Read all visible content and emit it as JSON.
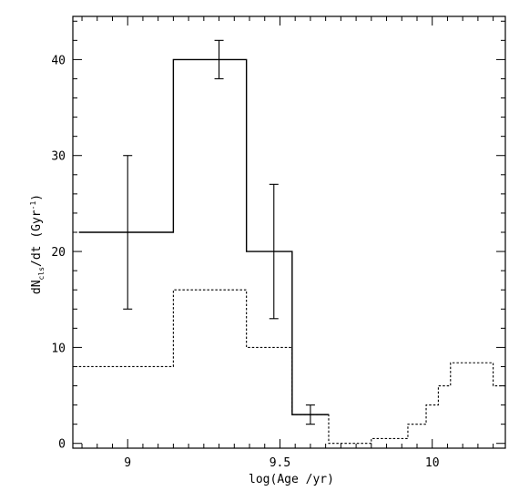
{
  "chart_data": {
    "type": "line",
    "title": "",
    "xlabel": "log(Age /yr)",
    "ylabel_main": "dN",
    "ylabel_sub": "cls",
    "ylabel_rest": "/dt (Gyr",
    "ylabel_sup": "-1",
    "ylabel_close": ")",
    "xlim": [
      8.82,
      10.24
    ],
    "ylim": [
      -0.5,
      44.5
    ],
    "x_ticks": [
      9,
      9.5,
      10
    ],
    "x_tick_labels": [
      "9",
      "9.5",
      "10"
    ],
    "y_ticks": [
      0,
      10,
      20,
      30,
      40
    ],
    "y_tick_labels": [
      "0",
      "10",
      "20",
      "30",
      "40"
    ],
    "grid": false,
    "series": [
      {
        "style": "solid",
        "bins": [
          {
            "x0": 8.84,
            "x1": 9.15,
            "y": 22
          },
          {
            "x0": 9.15,
            "x1": 9.39,
            "y": 40
          },
          {
            "x0": 9.39,
            "x1": 9.54,
            "y": 20
          },
          {
            "x0": 9.54,
            "x1": 9.66,
            "y": 3
          }
        ],
        "error_bars": [
          {
            "x": 9.0,
            "y": 22,
            "low": 14,
            "high": 30
          },
          {
            "x": 9.3,
            "y": 40,
            "low": 38,
            "high": 42
          },
          {
            "x": 9.48,
            "y": 20,
            "low": 13,
            "high": 27
          },
          {
            "x": 9.6,
            "y": 3,
            "low": 2,
            "high": 4
          }
        ]
      },
      {
        "style": "dotted",
        "bins": [
          {
            "x0": 8.84,
            "x1": 9.15,
            "y": 8
          },
          {
            "x0": 9.15,
            "x1": 9.39,
            "y": 16
          },
          {
            "x0": 9.39,
            "x1": 9.54,
            "y": 10
          },
          {
            "x0": 9.54,
            "x1": 9.66,
            "y": 3
          },
          {
            "x0": 9.66,
            "x1": 9.8,
            "y": 0
          },
          {
            "x0": 9.8,
            "x1": 9.92,
            "y": 0.5
          },
          {
            "x0": 9.92,
            "x1": 9.98,
            "y": 2
          },
          {
            "x0": 9.98,
            "x1": 10.02,
            "y": 4
          },
          {
            "x0": 10.02,
            "x1": 10.06,
            "y": 6
          },
          {
            "x0": 10.06,
            "x1": 10.2,
            "y": 8.4
          },
          {
            "x0": 10.2,
            "x1": 10.24,
            "y": 6
          }
        ]
      }
    ]
  }
}
